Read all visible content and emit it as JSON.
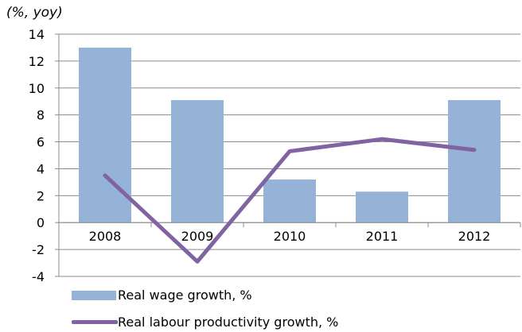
{
  "chart_data": {
    "type": "bar+line",
    "unit_label": "(%, yoy)",
    "categories": [
      "2008",
      "2009",
      "2010",
      "2011",
      "2012"
    ],
    "series": [
      {
        "name": "Real wage growth, %",
        "type": "bar",
        "color": "#95b3d7",
        "values": [
          13.0,
          9.1,
          3.2,
          2.3,
          9.1
        ]
      },
      {
        "name": "Real labour productivity growth, %",
        "type": "line",
        "color": "#8064a2",
        "values": [
          3.5,
          -2.9,
          5.3,
          6.2,
          5.4
        ]
      }
    ],
    "ylim": [
      -4,
      14
    ],
    "yticks": [
      "14",
      "12",
      "10",
      "8",
      "6",
      "4",
      "2",
      "0",
      "-2",
      "-4"
    ],
    "grid": true,
    "legend_position": "bottom"
  }
}
